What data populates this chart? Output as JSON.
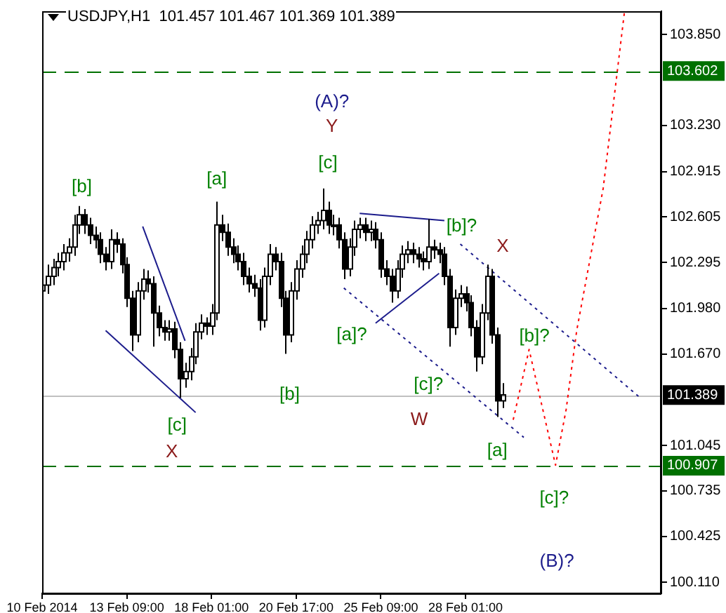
{
  "chart_data": {
    "type": "candlestick",
    "title": "USDJPY,H1  101.457 101.467 101.369 101.389",
    "color": "#000000",
    "categories": [
      "10 Feb 2014",
      null,
      null,
      null,
      null,
      null,
      null,
      null,
      null,
      null,
      null,
      null,
      null,
      null,
      null,
      null,
      "13 Feb 09:00",
      null,
      null,
      null,
      null,
      null,
      null,
      null,
      null,
      null,
      null,
      null,
      null,
      null,
      null,
      null,
      "18 Feb 01:00",
      null,
      null,
      null,
      null,
      null,
      null,
      null,
      null,
      null,
      null,
      null,
      null,
      null,
      null,
      null,
      "20 Feb 17:00",
      null,
      null,
      null,
      null,
      null,
      null,
      null,
      null,
      null,
      null,
      null,
      null,
      null,
      null,
      null,
      "25 Feb 09:00",
      null,
      null,
      null,
      null,
      null,
      null,
      null,
      null,
      null,
      null,
      null,
      null,
      null,
      null,
      null,
      "28 Feb 01:00",
      null,
      null,
      null,
      null,
      null,
      null,
      null,
      null,
      null,
      null,
      null,
      null,
      null,
      null,
      null,
      null,
      null,
      null,
      null,
      null,
      null,
      null,
      null,
      null,
      null,
      null,
      null,
      null,
      null,
      null,
      null,
      null,
      null,
      null,
      null,
      null,
      null
    ],
    "ohlc": [
      [
        102.1,
        102.2,
        101.95,
        102.14
      ],
      [
        102.14,
        102.28,
        102.08,
        102.2
      ],
      [
        102.2,
        102.32,
        102.14,
        102.26
      ],
      [
        102.26,
        102.36,
        102.2,
        102.3
      ],
      [
        102.3,
        102.42,
        102.24,
        102.36
      ],
      [
        102.36,
        102.46,
        102.3,
        102.4
      ],
      [
        102.4,
        102.62,
        102.34,
        102.55
      ],
      [
        102.55,
        102.68,
        102.49,
        102.62
      ],
      [
        102.62,
        102.66,
        102.49,
        102.55
      ],
      [
        102.55,
        102.6,
        102.42,
        102.48
      ],
      [
        102.48,
        102.54,
        102.39,
        102.45
      ],
      [
        102.45,
        102.5,
        102.29,
        102.35
      ],
      [
        102.35,
        102.4,
        102.24,
        102.3
      ],
      [
        102.3,
        102.52,
        102.25,
        102.45
      ],
      [
        102.45,
        102.5,
        102.36,
        102.42
      ],
      [
        102.42,
        102.46,
        102.22,
        102.28
      ],
      [
        102.28,
        102.33,
        101.99,
        102.05
      ],
      [
        102.05,
        102.1,
        101.69,
        101.8
      ],
      [
        101.8,
        102.16,
        101.75,
        102.1
      ],
      [
        102.1,
        102.25,
        102.04,
        102.18
      ],
      [
        102.18,
        102.24,
        102.09,
        102.15
      ],
      [
        102.15,
        102.2,
        101.72,
        101.95
      ],
      [
        101.95,
        102.0,
        101.79,
        101.85
      ],
      [
        101.85,
        101.9,
        101.76,
        101.82
      ],
      [
        101.82,
        101.9,
        101.76,
        101.84
      ],
      [
        101.84,
        101.89,
        101.64,
        101.7
      ],
      [
        101.7,
        101.75,
        101.37,
        101.5
      ],
      [
        101.5,
        101.61,
        101.44,
        101.55
      ],
      [
        101.55,
        101.71,
        101.49,
        101.65
      ],
      [
        101.65,
        101.88,
        101.6,
        101.82
      ],
      [
        101.82,
        101.94,
        101.77,
        101.88
      ],
      [
        101.88,
        101.92,
        101.8,
        101.86
      ],
      [
        101.86,
        102.01,
        101.8,
        101.95
      ],
      [
        101.95,
        102.71,
        101.9,
        102.55
      ],
      [
        102.55,
        102.62,
        102.44,
        102.5
      ],
      [
        102.5,
        102.56,
        102.34,
        102.4
      ],
      [
        102.4,
        102.46,
        102.29,
        102.35
      ],
      [
        102.35,
        102.41,
        102.24,
        102.3
      ],
      [
        102.3,
        102.36,
        102.14,
        102.2
      ],
      [
        102.2,
        102.26,
        102.09,
        102.15
      ],
      [
        102.15,
        102.21,
        102.06,
        102.12
      ],
      [
        102.12,
        102.18,
        101.83,
        101.9
      ],
      [
        101.9,
        102.26,
        101.85,
        102.2
      ],
      [
        102.2,
        102.42,
        102.14,
        102.35
      ],
      [
        102.35,
        102.4,
        102.24,
        102.3
      ],
      [
        102.3,
        102.36,
        101.99,
        102.05
      ],
      [
        102.05,
        102.1,
        101.67,
        101.8
      ],
      [
        101.8,
        102.16,
        101.75,
        102.1
      ],
      [
        102.1,
        102.31,
        102.04,
        102.25
      ],
      [
        102.25,
        102.41,
        102.19,
        102.35
      ],
      [
        102.35,
        102.51,
        102.29,
        102.45
      ],
      [
        102.45,
        102.61,
        102.39,
        102.55
      ],
      [
        102.55,
        102.64,
        102.49,
        102.58
      ],
      [
        102.58,
        102.8,
        102.52,
        102.65
      ],
      [
        102.65,
        102.71,
        102.49,
        102.55
      ],
      [
        102.55,
        102.62,
        102.48,
        102.55
      ],
      [
        102.55,
        102.6,
        102.39,
        102.45
      ],
      [
        102.45,
        102.5,
        102.18,
        102.25
      ],
      [
        102.25,
        102.46,
        102.2,
        102.4
      ],
      [
        102.4,
        102.58,
        102.34,
        102.52
      ],
      [
        102.52,
        102.6,
        102.46,
        102.55
      ],
      [
        102.55,
        102.6,
        102.44,
        102.5
      ],
      [
        102.5,
        102.58,
        102.44,
        102.52
      ],
      [
        102.52,
        102.57,
        102.39,
        102.45
      ],
      [
        102.45,
        102.5,
        102.19,
        102.25
      ],
      [
        102.25,
        102.31,
        102.14,
        102.2
      ],
      [
        102.2,
        102.25,
        102.02,
        102.1
      ],
      [
        102.1,
        102.31,
        102.05,
        102.25
      ],
      [
        102.25,
        102.41,
        102.19,
        102.35
      ],
      [
        102.35,
        102.44,
        102.29,
        102.38
      ],
      [
        102.38,
        102.43,
        102.29,
        102.35
      ],
      [
        102.35,
        102.4,
        102.26,
        102.32
      ],
      [
        102.32,
        102.37,
        102.24,
        102.3
      ],
      [
        102.3,
        102.59,
        102.25,
        102.4
      ],
      [
        102.4,
        102.45,
        102.32,
        102.38
      ],
      [
        102.38,
        102.43,
        102.29,
        102.35
      ],
      [
        102.35,
        102.4,
        102.14,
        102.2
      ],
      [
        102.2,
        102.25,
        101.72,
        101.85
      ],
      [
        101.85,
        102.11,
        101.8,
        102.05
      ],
      [
        102.05,
        102.14,
        101.99,
        102.08
      ],
      [
        102.08,
        102.13,
        101.96,
        102.02
      ],
      [
        102.02,
        102.07,
        101.79,
        101.85
      ],
      [
        101.85,
        101.9,
        101.55,
        101.65
      ],
      [
        101.65,
        102.01,
        101.6,
        101.95
      ],
      [
        101.95,
        102.28,
        101.9,
        102.2
      ],
      [
        102.2,
        102.25,
        101.74,
        101.8
      ],
      [
        101.8,
        101.85,
        101.24,
        101.35
      ],
      [
        101.35,
        101.47,
        101.3,
        101.39
      ],
      null,
      null,
      null,
      null,
      null,
      null,
      null,
      null,
      null,
      null,
      null,
      null,
      null,
      null,
      null,
      null,
      null,
      null,
      null,
      null,
      null,
      null,
      null,
      null,
      null,
      null,
      null,
      null,
      null,
      null
    ],
    "series": [
      {
        "type": "line",
        "color": "#1c1c8c",
        "line_style": "solid",
        "values": [
          null,
          null,
          null,
          null,
          null,
          null,
          null,
          null,
          null,
          null,
          null,
          null,
          null,
          null,
          null,
          null,
          null,
          null,
          null,
          102.54,
          null,
          null,
          null,
          null,
          null,
          null,
          null,
          101.76,
          null,
          null,
          null,
          null,
          null,
          null,
          null,
          null,
          null,
          null,
          null,
          null,
          null,
          null,
          null,
          null,
          null,
          null,
          null,
          null,
          null,
          null,
          null,
          null,
          null,
          null,
          null,
          null,
          null,
          null,
          null,
          null,
          null,
          null,
          null,
          null,
          null,
          null,
          null,
          null,
          null,
          null,
          null,
          null,
          null,
          null,
          null,
          null,
          null,
          null,
          null,
          null,
          null,
          null,
          null,
          null,
          null,
          null,
          null,
          null,
          null,
          null,
          null,
          null,
          null,
          null,
          null,
          null,
          null,
          null,
          null,
          null,
          null,
          null,
          null,
          null,
          null,
          null,
          null,
          null,
          null,
          null,
          null,
          null,
          null,
          null,
          null,
          null,
          null,
          null
        ]
      },
      {
        "type": "line",
        "color": "#1c1c8c",
        "line_style": "solid",
        "values": [
          null,
          null,
          null,
          null,
          null,
          null,
          null,
          null,
          null,
          null,
          null,
          null,
          101.83,
          null,
          null,
          null,
          null,
          null,
          null,
          null,
          null,
          null,
          null,
          null,
          null,
          null,
          null,
          null,
          null,
          101.27,
          null,
          null,
          null,
          null,
          null,
          null,
          null,
          null,
          null,
          null,
          null,
          null,
          null,
          null,
          null,
          null,
          null,
          null,
          null,
          null,
          null,
          null,
          null,
          null,
          null,
          null,
          null,
          null,
          null,
          null,
          null,
          null,
          null,
          null,
          null,
          null,
          null,
          null,
          null,
          null,
          null,
          null,
          null,
          null,
          null,
          null,
          null,
          null,
          null,
          null,
          null,
          null,
          null,
          null,
          null,
          null,
          null,
          null,
          null,
          null,
          null,
          null,
          null,
          null,
          null,
          null,
          null,
          null,
          null,
          null,
          null,
          null,
          null,
          null,
          null,
          null,
          null,
          null,
          null,
          null,
          null,
          null,
          null,
          null,
          null,
          null,
          null,
          null
        ]
      },
      {
        "type": "line",
        "color": "#1c1c8c",
        "line_style": "solid",
        "values": [
          null,
          null,
          null,
          null,
          null,
          null,
          null,
          null,
          null,
          null,
          null,
          null,
          null,
          null,
          null,
          null,
          null,
          null,
          null,
          null,
          null,
          null,
          null,
          null,
          null,
          null,
          null,
          null,
          null,
          null,
          null,
          null,
          null,
          null,
          null,
          null,
          null,
          null,
          null,
          null,
          null,
          null,
          null,
          null,
          null,
          null,
          null,
          null,
          null,
          null,
          null,
          null,
          null,
          null,
          null,
          null,
          null,
          null,
          null,
          null,
          102.63,
          null,
          null,
          null,
          null,
          null,
          null,
          null,
          null,
          null,
          null,
          null,
          null,
          null,
          null,
          null,
          102.58,
          null,
          null,
          null,
          null,
          null,
          null,
          null,
          null,
          null,
          null,
          null,
          null,
          null,
          null,
          null,
          null,
          null,
          null,
          null,
          null,
          null,
          null,
          null,
          null,
          null,
          null,
          null,
          null,
          null,
          null,
          null,
          null,
          null,
          null,
          null,
          null,
          null,
          null,
          null,
          null,
          null
        ]
      },
      {
        "type": "line",
        "color": "#1c1c8c",
        "line_style": "solid",
        "values": [
          null,
          null,
          null,
          null,
          null,
          null,
          null,
          null,
          null,
          null,
          null,
          null,
          null,
          null,
          null,
          null,
          null,
          null,
          null,
          null,
          null,
          null,
          null,
          null,
          null,
          null,
          null,
          null,
          null,
          null,
          null,
          null,
          null,
          null,
          null,
          null,
          null,
          null,
          null,
          null,
          null,
          null,
          null,
          null,
          null,
          null,
          null,
          null,
          null,
          null,
          null,
          null,
          null,
          null,
          null,
          null,
          null,
          null,
          null,
          null,
          null,
          null,
          null,
          101.88,
          null,
          null,
          null,
          null,
          null,
          null,
          null,
          null,
          null,
          null,
          null,
          102.22,
          null,
          null,
          null,
          null,
          null,
          null,
          null,
          null,
          null,
          null,
          null,
          null,
          null,
          null,
          null,
          null,
          null,
          null,
          null,
          null,
          null,
          null,
          null,
          null,
          null,
          null,
          null,
          null,
          null,
          null,
          null,
          null,
          null,
          null,
          null,
          null,
          null,
          null,
          null,
          null,
          null,
          null
        ]
      },
      {
        "type": "line",
        "color": "#1c1c8c",
        "line_style": "dotted",
        "values": [
          null,
          null,
          null,
          null,
          null,
          null,
          null,
          null,
          null,
          null,
          null,
          null,
          null,
          null,
          null,
          null,
          null,
          null,
          null,
          null,
          null,
          null,
          null,
          null,
          null,
          null,
          null,
          null,
          null,
          null,
          null,
          null,
          null,
          null,
          null,
          null,
          null,
          null,
          null,
          null,
          null,
          null,
          null,
          null,
          null,
          null,
          null,
          null,
          null,
          null,
          null,
          null,
          null,
          null,
          null,
          null,
          null,
          102.12,
          null,
          null,
          null,
          null,
          null,
          null,
          null,
          null,
          null,
          null,
          null,
          null,
          null,
          null,
          null,
          null,
          null,
          null,
          null,
          null,
          null,
          null,
          null,
          null,
          null,
          null,
          null,
          null,
          null,
          null,
          null,
          null,
          null,
          101.1,
          null,
          null,
          null,
          null,
          null,
          null,
          null,
          null,
          null,
          null,
          null,
          null,
          null,
          null,
          null,
          null,
          null,
          null,
          null,
          null,
          null,
          null,
          null,
          null,
          null,
          null
        ]
      },
      {
        "type": "line",
        "color": "#1c1c8c",
        "line_style": "dotted",
        "values": [
          null,
          null,
          null,
          null,
          null,
          null,
          null,
          null,
          null,
          null,
          null,
          null,
          null,
          null,
          null,
          null,
          null,
          null,
          null,
          null,
          null,
          null,
          null,
          null,
          null,
          null,
          null,
          null,
          null,
          null,
          null,
          null,
          null,
          null,
          null,
          null,
          null,
          null,
          null,
          null,
          null,
          null,
          null,
          null,
          null,
          null,
          null,
          null,
          null,
          null,
          null,
          null,
          null,
          null,
          null,
          null,
          null,
          null,
          null,
          null,
          null,
          null,
          null,
          null,
          null,
          null,
          null,
          null,
          null,
          null,
          null,
          null,
          null,
          null,
          null,
          null,
          null,
          null,
          null,
          102.42,
          null,
          null,
          null,
          null,
          null,
          null,
          null,
          null,
          null,
          null,
          null,
          null,
          null,
          null,
          null,
          null,
          null,
          null,
          null,
          null,
          null,
          null,
          null,
          null,
          null,
          null,
          null,
          null,
          null,
          null,
          null,
          null,
          null,
          101.37,
          null,
          null,
          null,
          null
        ]
      },
      {
        "type": "line",
        "color": "#ff0000",
        "line_style": "dotted",
        "values": [
          null,
          null,
          null,
          null,
          null,
          null,
          null,
          null,
          null,
          null,
          null,
          null,
          null,
          null,
          null,
          null,
          null,
          null,
          null,
          null,
          null,
          null,
          null,
          null,
          null,
          null,
          null,
          null,
          null,
          null,
          null,
          null,
          null,
          null,
          null,
          null,
          null,
          null,
          null,
          null,
          null,
          null,
          null,
          null,
          null,
          null,
          null,
          null,
          null,
          null,
          null,
          null,
          null,
          null,
          null,
          null,
          null,
          null,
          null,
          null,
          null,
          null,
          null,
          null,
          null,
          null,
          null,
          null,
          null,
          null,
          null,
          null,
          null,
          null,
          null,
          null,
          null,
          null,
          null,
          null,
          null,
          null,
          null,
          null,
          null,
          null,
          null,
          null,
          null,
          101.22,
          null,
          null,
          101.7,
          null,
          null,
          null,
          null,
          100.91,
          null,
          101.29,
          null,
          101.83,
          null,
          null,
          null,
          null,
          102.8,
          null,
          null,
          null,
          104.0,
          null,
          null,
          null,
          null,
          null,
          null,
          null
        ]
      }
    ],
    "ylim": [
      100.035,
      104.01
    ],
    "yticks": [
      {
        "value": 100.11,
        "label": "100.110"
      },
      100.425,
      100.735,
      101.045,
      {
        "value": 101.67,
        "label": "101.670"
      },
      {
        "value": 101.98,
        "label": "101.980"
      },
      102.295,
      102.605,
      102.915,
      {
        "value": 103.23,
        "label": "103.230"
      },
      {
        "value": 103.85,
        "label": "103.850"
      }
    ],
    "ref_lines": [
      {
        "axis": "y",
        "value": 103.602,
        "label": "103.602",
        "color": "#007000",
        "line_style": "dashed"
      },
      {
        "axis": "y",
        "value": 100.907,
        "label": "100.907",
        "color": "#007000",
        "line_style": "dashed"
      },
      {
        "axis": "y",
        "value": 101.389,
        "label": "101.389",
        "color": "#c0c0c0",
        "line_style": "solid"
      }
    ],
    "annotations": [
      "(A)?",
      "Y",
      "[c]",
      "[b]",
      "[a]",
      "[c]",
      "X",
      "[b]",
      "[a]?",
      "[c]?",
      "W",
      "[a]",
      "[b]?",
      "X",
      "[b]?",
      "[c]?",
      "(B)?"
    ]
  }
}
